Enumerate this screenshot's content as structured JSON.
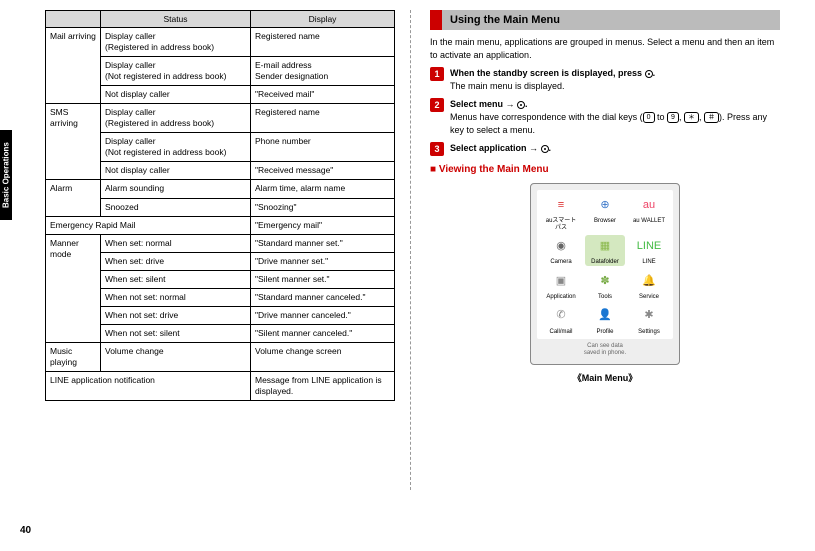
{
  "sidebar": {
    "label": "Basic Operations"
  },
  "page_number": "40",
  "table": {
    "headers": [
      "",
      "Status",
      "Display"
    ],
    "rows": [
      {
        "cat": "Mail arriving",
        "catspan": 3,
        "status": "Display caller\n(Registered in address book)",
        "display": "Registered name"
      },
      {
        "status": "Display caller\n(Not registered in address book)",
        "display": "E-mail address\nSender designation"
      },
      {
        "status": "Not display caller",
        "display": "\"Received mail\""
      },
      {
        "cat": "SMS arriving",
        "catspan": 3,
        "status": "Display caller\n(Registered in address book)",
        "display": "Registered name"
      },
      {
        "status": "Display caller\n(Not registered in address book)",
        "display": "Phone number"
      },
      {
        "status": "Not display caller",
        "display": "\"Received message\""
      },
      {
        "cat": "Alarm",
        "catspan": 2,
        "status": "Alarm sounding",
        "display": "Alarm time, alarm name"
      },
      {
        "status": "Snoozed",
        "display": "\"Snoozing\""
      },
      {
        "cat": "Emergency Rapid Mail",
        "fullspan": true,
        "display": "\"Emergency mail\""
      },
      {
        "cat": "Manner mode",
        "catspan": 6,
        "status": "When set: normal",
        "display": "\"Standard manner set.\""
      },
      {
        "status": "When set: drive",
        "display": "\"Drive manner set.\""
      },
      {
        "status": "When set: silent",
        "display": "\"Silent manner set.\""
      },
      {
        "status": "When not set: normal",
        "display": "\"Standard manner canceled.\""
      },
      {
        "status": "When not set: drive",
        "display": "\"Drive manner canceled.\""
      },
      {
        "status": "When not set: silent",
        "display": "\"Silent manner canceled.\""
      },
      {
        "cat": "Music playing",
        "catspan": 1,
        "status": "Volume change",
        "display": "Volume change screen"
      },
      {
        "cat": "LINE application notification",
        "fullspan": true,
        "display": "Message from LINE application is displayed."
      }
    ]
  },
  "right": {
    "section_title": "Using the Main Menu",
    "intro": "In the main menu, applications are grouped in menus. Select a menu and then an item to activate an application.",
    "steps": [
      {
        "num": "1",
        "title": "When the standby screen is displayed, press ",
        "tail": ".",
        "desc": "The main menu is displayed."
      },
      {
        "num": "2",
        "title": "Select menu → ",
        "tail": ".",
        "desc_pre": "Menus have correspondence with the dial keys (",
        "desc_mid": " to ",
        "desc_post": "). Press any key to select a menu.",
        "k0": "0",
        "k9": "9",
        "kstar": "＊",
        "khash": "＃"
      },
      {
        "num": "3",
        "title": "Select application → ",
        "tail": "."
      }
    ],
    "sub_title": "Viewing the Main Menu",
    "phone": {
      "apps": [
        {
          "label": "auスマート\nパス",
          "color": "#d33",
          "glyph": "≡"
        },
        {
          "label": "Browser",
          "color": "#3a77c9",
          "glyph": "⊕"
        },
        {
          "label": "au WALLET",
          "color": "#e46",
          "glyph": "au"
        },
        {
          "label": "Camera",
          "color": "#666",
          "glyph": "◉"
        },
        {
          "label": "Datafolder",
          "color": "#89b84a",
          "glyph": "▦",
          "highlight": true
        },
        {
          "label": "LINE",
          "color": "#4b4",
          "glyph": "LINE"
        },
        {
          "label": "Application",
          "color": "#888",
          "glyph": "▣"
        },
        {
          "label": "Tools",
          "color": "#7a4",
          "glyph": "✽"
        },
        {
          "label": "Service",
          "color": "#e99",
          "glyph": "🔔"
        },
        {
          "label": "Call/mail",
          "color": "#888",
          "glyph": "✆"
        },
        {
          "label": "Profile",
          "color": "#b6c",
          "glyph": "👤"
        },
        {
          "label": "Settings",
          "color": "#888",
          "glyph": "✱"
        }
      ],
      "footer": "Can see data\nsaved in phone.",
      "caption": "《Main Menu》"
    }
  }
}
